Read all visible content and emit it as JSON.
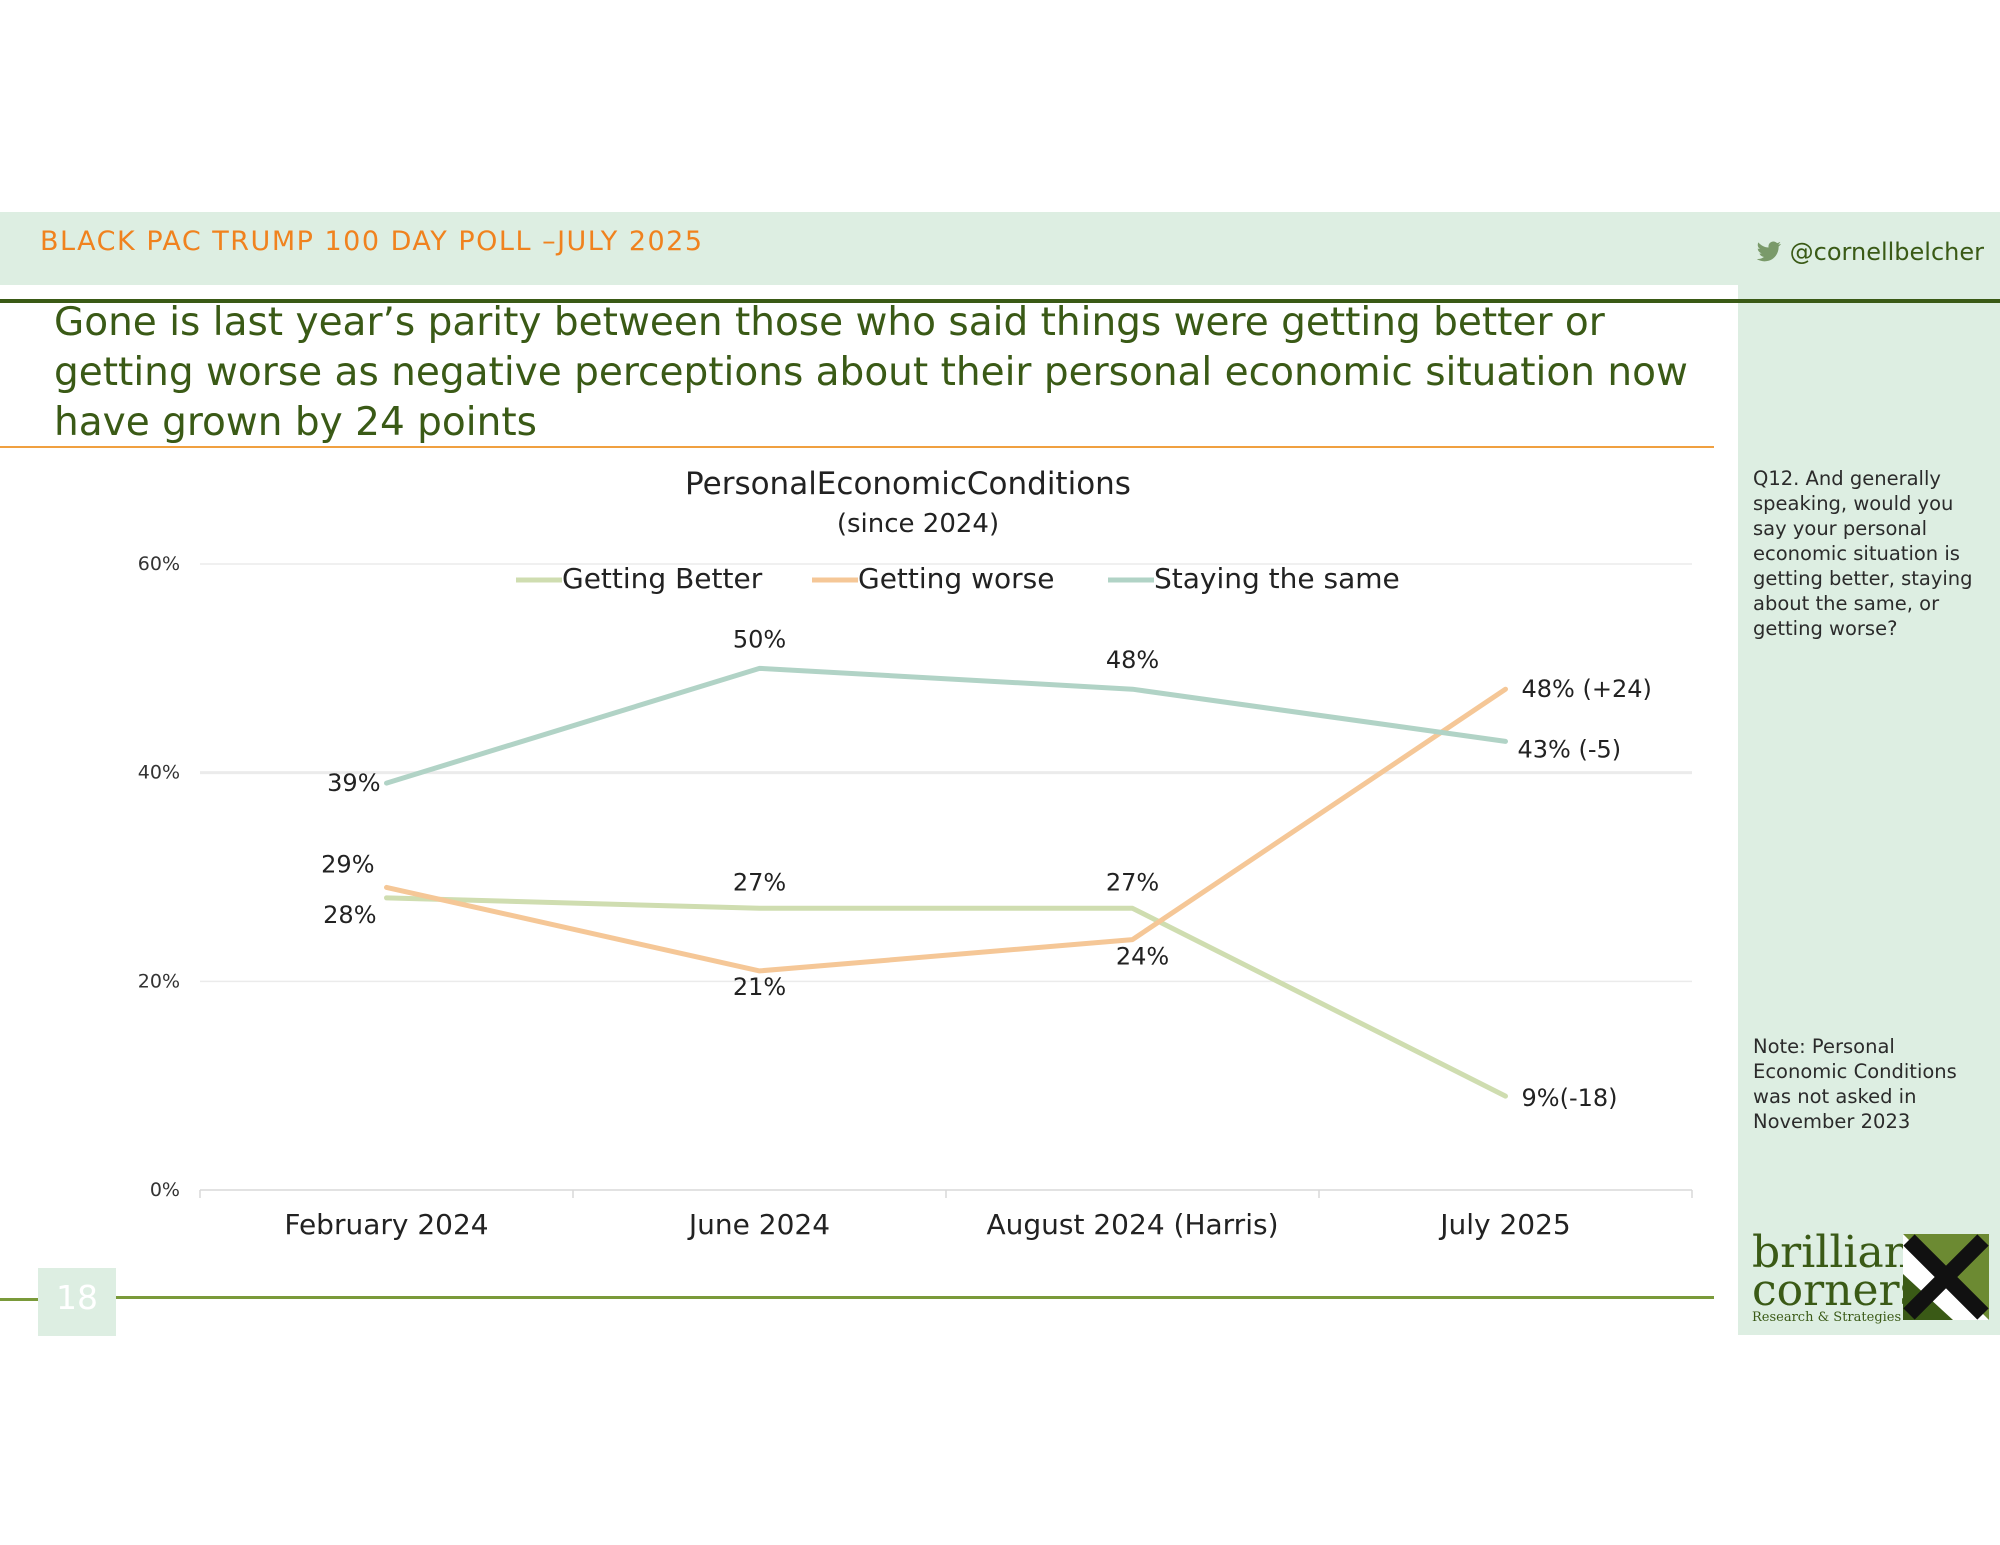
{
  "header": {
    "title": "BLACK PAC TRUMP 100 DAY POLL –JULY 2025",
    "twitter_handle": "@cornellbelcher"
  },
  "headline": "Gone is last year’s parity between those who said things were getting better or getting worse as negative perceptions about their personal economic situation now have grown by 24 points",
  "sidebar": {
    "question": "Q12. And generally speaking, would you say your personal economic situation is getting better, staying about the same, or getting worse?",
    "note": "Note: Personal Economic Conditions was not asked in November 2023"
  },
  "footer": {
    "page_number": "18",
    "logo_line1": "brilliant",
    "logo_line2": "corners",
    "logo_line3": "Research & Strategies"
  },
  "chart_data": {
    "type": "line",
    "title": "PersonalEconomicConditions",
    "subtitle": "(since 2024)",
    "categories": [
      "February 2024",
      "June 2024",
      "August 2024 (Harris)",
      "July 2025"
    ],
    "y_ticks": [
      "0%",
      "20%",
      "40%",
      "60%"
    ],
    "ylim": [
      0,
      60
    ],
    "grid": true,
    "legend_position": "top",
    "series": [
      {
        "name": "Getting Better",
        "color": "#cfddb0",
        "values": [
          28,
          27,
          27,
          9
        ],
        "labels": [
          "28%",
          "27%",
          "27%",
          "9%(-18)"
        ]
      },
      {
        "name": "Getting worse",
        "color": "#f5c797",
        "values": [
          29,
          21,
          24,
          48
        ],
        "labels": [
          "29%",
          "21%",
          "24%",
          "48% (+24)"
        ]
      },
      {
        "name": "Staying the same",
        "color": "#b1d3c6",
        "values": [
          39,
          50,
          48,
          43
        ],
        "labels": [
          "39%",
          "50%",
          "48%",
          "43% (-5)"
        ]
      }
    ]
  }
}
